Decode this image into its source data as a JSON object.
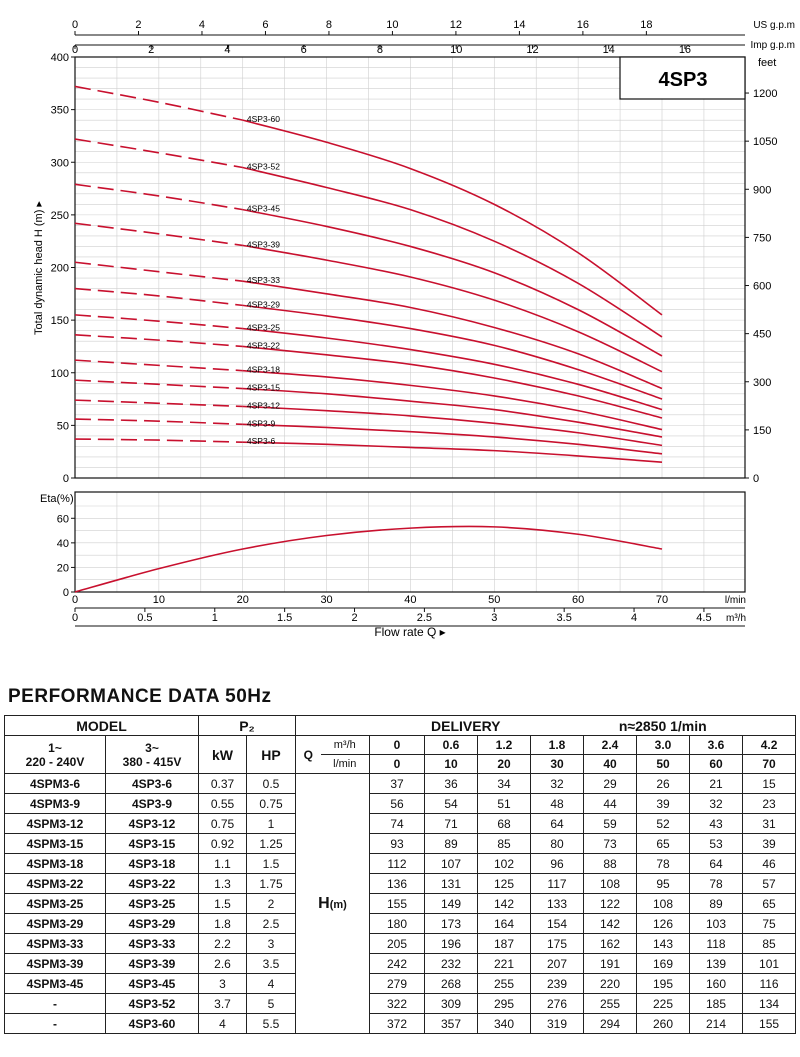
{
  "chart_data": [
    {
      "type": "line",
      "title": "4SP3",
      "ylabel": "Total dynamic head H (m)",
      "ylabel_right": "feet",
      "x_top_us_label": "US g.p.m",
      "x_top_imp_label": "Imp g.p.m",
      "x": [
        0,
        10,
        20,
        30,
        40,
        50,
        60,
        70
      ],
      "xlim": [
        0,
        70
      ],
      "ylim": [
        0,
        400
      ],
      "y_ticks": [
        0,
        50,
        100,
        150,
        200,
        250,
        300,
        350,
        400
      ],
      "feet_ticks": [
        0,
        150,
        300,
        450,
        600,
        750,
        900,
        1050,
        1200
      ],
      "us_gpm_ticks": [
        0,
        2,
        4,
        6,
        8,
        10,
        12,
        14,
        16,
        18
      ],
      "imp_gpm_ticks": [
        0,
        2,
        4,
        6,
        8,
        10,
        12,
        14,
        16
      ],
      "dashed_until_x": 20,
      "grid": true,
      "series": [
        {
          "name": "4SP3-60",
          "values": [
            372,
            357,
            340,
            319,
            294,
            260,
            214,
            155
          ]
        },
        {
          "name": "4SP3-52",
          "values": [
            322,
            309,
            295,
            276,
            255,
            225,
            185,
            134
          ]
        },
        {
          "name": "4SP3-45",
          "values": [
            279,
            268,
            255,
            239,
            220,
            195,
            160,
            116
          ]
        },
        {
          "name": "4SP3-39",
          "values": [
            242,
            232,
            221,
            207,
            191,
            169,
            139,
            101
          ]
        },
        {
          "name": "4SP3-33",
          "values": [
            205,
            196,
            187,
            175,
            162,
            143,
            118,
            85
          ]
        },
        {
          "name": "4SP3-29",
          "values": [
            180,
            173,
            164,
            154,
            142,
            126,
            103,
            75
          ]
        },
        {
          "name": "4SP3-25",
          "values": [
            155,
            149,
            142,
            133,
            122,
            108,
            89,
            65
          ]
        },
        {
          "name": "4SP3-22",
          "values": [
            136,
            131,
            125,
            117,
            108,
            95,
            78,
            57
          ]
        },
        {
          "name": "4SP3-18",
          "values": [
            112,
            107,
            102,
            96,
            88,
            78,
            64,
            46
          ]
        },
        {
          "name": "4SP3-15",
          "values": [
            93,
            89,
            85,
            80,
            73,
            65,
            53,
            39
          ]
        },
        {
          "name": "4SP3-12",
          "values": [
            74,
            71,
            68,
            64,
            59,
            52,
            43,
            31
          ]
        },
        {
          "name": "4SP3-9",
          "values": [
            56,
            54,
            51,
            48,
            44,
            39,
            32,
            23
          ]
        },
        {
          "name": "4SP3-6",
          "values": [
            37,
            36,
            34,
            32,
            29,
            26,
            21,
            15
          ]
        }
      ]
    },
    {
      "type": "line",
      "ylabel": "Eta(%)",
      "x": [
        0,
        10,
        20,
        30,
        40,
        50,
        60,
        70
      ],
      "values": [
        0,
        19,
        35,
        46,
        52,
        53,
        47,
        35
      ],
      "xlim": [
        0,
        70
      ],
      "ylim": [
        0,
        70
      ],
      "y_ticks": [
        0,
        20,
        40,
        60
      ],
      "x_ticks_lmin": [
        0,
        10,
        20,
        30,
        40,
        50,
        60,
        70
      ],
      "x_unit_lmin": "l/min",
      "x_ticks_m3h": [
        "0",
        "0.5",
        "1",
        "1.5",
        "2",
        "2.5",
        "3",
        "3.5",
        "4",
        "4.5"
      ],
      "x_unit_m3h": "m³/h",
      "xlabel": "Flow rate Q",
      "grid": true
    }
  ],
  "performance": {
    "title": "PERFORMANCE  DATA   50Hz",
    "header": {
      "model": "MODEL",
      "p2": "P₂",
      "delivery": "DELIVERY",
      "speed": "n≈2850 1/min",
      "single_phase": "1~",
      "single_phase_v": "220 - 240V",
      "three_phase": "3~",
      "three_phase_v": "380 - 415V",
      "kw": "kW",
      "hp": "HP",
      "q": "Q",
      "unit_m3h": "m³/h",
      "unit_lmin": "l/min",
      "h_label": "H(m)"
    },
    "q_m3h": [
      "0",
      "0.6",
      "1.2",
      "1.8",
      "2.4",
      "3.0",
      "3.6",
      "4.2"
    ],
    "q_lmin": [
      "0",
      "10",
      "20",
      "30",
      "40",
      "50",
      "60",
      "70"
    ],
    "rows": [
      {
        "m1": "4SPM3-6",
        "m3": "4SP3-6",
        "kw": "0.37",
        "hp": "0.5",
        "h": [
          "37",
          "36",
          "34",
          "32",
          "29",
          "26",
          "21",
          "15"
        ]
      },
      {
        "m1": "4SPM3-9",
        "m3": "4SP3-9",
        "kw": "0.55",
        "hp": "0.75",
        "h": [
          "56",
          "54",
          "51",
          "48",
          "44",
          "39",
          "32",
          "23"
        ]
      },
      {
        "m1": "4SPM3-12",
        "m3": "4SP3-12",
        "kw": "0.75",
        "hp": "1",
        "h": [
          "74",
          "71",
          "68",
          "64",
          "59",
          "52",
          "43",
          "31"
        ]
      },
      {
        "m1": "4SPM3-15",
        "m3": "4SP3-15",
        "kw": "0.92",
        "hp": "1.25",
        "h": [
          "93",
          "89",
          "85",
          "80",
          "73",
          "65",
          "53",
          "39"
        ]
      },
      {
        "m1": "4SPM3-18",
        "m3": "4SP3-18",
        "kw": "1.1",
        "hp": "1.5",
        "h": [
          "112",
          "107",
          "102",
          "96",
          "88",
          "78",
          "64",
          "46"
        ]
      },
      {
        "m1": "4SPM3-22",
        "m3": "4SP3-22",
        "kw": "1.3",
        "hp": "1.75",
        "h": [
          "136",
          "131",
          "125",
          "117",
          "108",
          "95",
          "78",
          "57"
        ]
      },
      {
        "m1": "4SPM3-25",
        "m3": "4SP3-25",
        "kw": "1.5",
        "hp": "2",
        "h": [
          "155",
          "149",
          "142",
          "133",
          "122",
          "108",
          "89",
          "65"
        ]
      },
      {
        "m1": "4SPM3-29",
        "m3": "4SP3-29",
        "kw": "1.8",
        "hp": "2.5",
        "h": [
          "180",
          "173",
          "164",
          "154",
          "142",
          "126",
          "103",
          "75"
        ]
      },
      {
        "m1": "4SPM3-33",
        "m3": "4SP3-33",
        "kw": "2.2",
        "hp": "3",
        "h": [
          "205",
          "196",
          "187",
          "175",
          "162",
          "143",
          "118",
          "85"
        ]
      },
      {
        "m1": "4SPM3-39",
        "m3": "4SP3-39",
        "kw": "2.6",
        "hp": "3.5",
        "h": [
          "242",
          "232",
          "221",
          "207",
          "191",
          "169",
          "139",
          "101"
        ]
      },
      {
        "m1": "4SPM3-45",
        "m3": "4SP3-45",
        "kw": "3",
        "hp": "4",
        "h": [
          "279",
          "268",
          "255",
          "239",
          "220",
          "195",
          "160",
          "116"
        ]
      },
      {
        "m1": "-",
        "m3": "4SP3-52",
        "kw": "3.7",
        "hp": "5",
        "h": [
          "322",
          "309",
          "295",
          "276",
          "255",
          "225",
          "185",
          "134"
        ]
      },
      {
        "m1": "-",
        "m3": "4SP3-60",
        "kw": "4",
        "hp": "5.5",
        "h": [
          "372",
          "357",
          "340",
          "319",
          "294",
          "260",
          "214",
          "155"
        ]
      }
    ]
  },
  "colors": {
    "curve": "#c8102e",
    "grid": "#cfcfcf",
    "axis": "#111111"
  }
}
